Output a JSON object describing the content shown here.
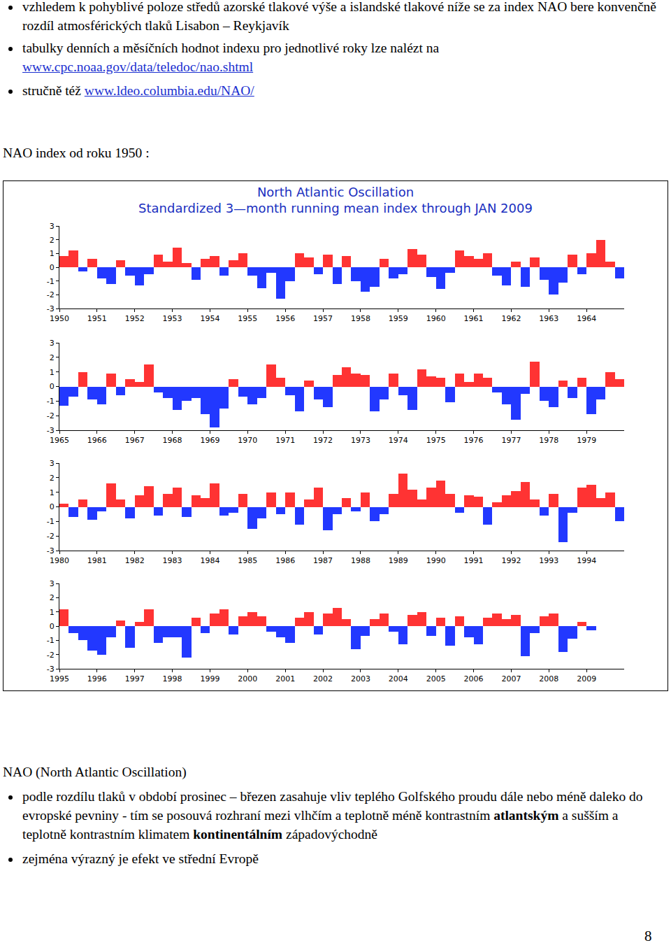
{
  "document": {
    "top_bullets": [
      [
        {
          "text": "vzhledem k pohyblivé poloze středů azorské tlakové výše a islandské tlakové níže se za index NAO bere konvenčně rozdíl atmosférických tlaků Lisabon – Reykjavík"
        }
      ],
      [
        {
          "text": "tabulky denních a měsíčních hodnot indexu pro jednotlivé roky lze nalézt na "
        },
        {
          "text": "www.cpc.noaa.gov/data/teledoc/nao.shtml",
          "link": true
        }
      ],
      [
        {
          "text": "stručně též "
        },
        {
          "text": "www.ldeo.columbia.edu/NAO/",
          "link": true
        }
      ]
    ],
    "heading": "NAO index od roku 1950 :",
    "section_title": "NAO (North Atlantic Oscillation)",
    "bottom_bullets": [
      [
        {
          "text": "podle rozdílu tlaků v období prosinec – březen zasahuje vliv teplého Golfského proudu dále nebo méně daleko do evropské pevniny - tím se posouvá rozhraní mezi vlhčím a teplotně méně kontrastním "
        },
        {
          "text": "atlantským",
          "bold": true
        },
        {
          "text": " a sušším a teplotně kontrastním klimatem "
        },
        {
          "text": "kontinentálním",
          "bold": true
        },
        {
          "text": " západovýchodně"
        }
      ],
      [
        {
          "text": "zejména výrazný je efekt ve střední Evropě"
        }
      ]
    ],
    "page_number": 8
  },
  "chart_data": [
    {
      "type": "bar",
      "title": "North Atlantic Oscillation",
      "subtitle": "Standardized 3—month running mean index through JAN 2009",
      "x": [
        1950,
        1950.25,
        1950.5,
        1950.75,
        1951,
        1951.25,
        1951.5,
        1951.75,
        1952,
        1952.25,
        1952.5,
        1952.75,
        1953,
        1953.25,
        1953.5,
        1953.75,
        1954,
        1954.25,
        1954.5,
        1954.75,
        1955,
        1955.25,
        1955.5,
        1955.75,
        1956,
        1956.25,
        1956.5,
        1956.75,
        1957,
        1957.25,
        1957.5,
        1957.75,
        1958,
        1958.25,
        1958.5,
        1958.75,
        1959,
        1959.25,
        1959.5,
        1959.75,
        1960,
        1960.25,
        1960.5,
        1960.75,
        1961,
        1961.25,
        1961.5,
        1961.75,
        1962,
        1962.25,
        1962.5,
        1962.75,
        1963,
        1963.25,
        1963.5,
        1963.75,
        1964,
        1964.25,
        1964.5,
        1964.75
      ],
      "values": [
        0.8,
        1.2,
        -0.3,
        0.6,
        -0.8,
        -1.2,
        0.5,
        -0.6,
        -1.3,
        -0.5,
        0.9,
        0.4,
        1.4,
        0.3,
        -0.9,
        0.6,
        0.8,
        -0.6,
        0.5,
        1.0,
        -0.6,
        -1.5,
        -0.4,
        -2.3,
        -1.0,
        1.0,
        0.7,
        -0.5,
        0.9,
        -1.2,
        0.8,
        -1.0,
        -1.8,
        -1.4,
        0.6,
        -0.8,
        -0.5,
        1.3,
        0.9,
        -0.7,
        -1.6,
        -0.4,
        1.2,
        0.8,
        0.6,
        1.0,
        -0.6,
        -1.3,
        0.4,
        -1.4,
        0.7,
        -0.9,
        -2.0,
        -1.1,
        0.9,
        -0.5,
        1.0,
        2.0,
        0.4,
        -0.8
      ],
      "colors": [
        "#ff3333",
        "#ff3333",
        "#2238ff",
        "#ff3333",
        "#2238ff",
        "#2238ff",
        "#ff3333",
        "#2238ff",
        "#2238ff",
        "#2238ff",
        "#ff3333",
        "#ff3333",
        "#ff3333",
        "#ff3333",
        "#2238ff",
        "#ff3333",
        "#ff3333",
        "#2238ff",
        "#ff3333",
        "#ff3333",
        "#2238ff",
        "#2238ff",
        "#2238ff",
        "#2238ff",
        "#2238ff",
        "#ff3333",
        "#ff3333",
        "#2238ff",
        "#ff3333",
        "#2238ff",
        "#ff3333",
        "#2238ff",
        "#2238ff",
        "#2238ff",
        "#ff3333",
        "#2238ff",
        "#2238ff",
        "#ff3333",
        "#ff3333",
        "#2238ff",
        "#2238ff",
        "#2238ff",
        "#ff3333",
        "#ff3333",
        "#ff3333",
        "#ff3333",
        "#2238ff",
        "#2238ff",
        "#ff3333",
        "#2238ff",
        "#ff3333",
        "#2238ff",
        "#2238ff",
        "#2238ff",
        "#ff3333",
        "#2238ff",
        "#ff3333",
        "#ff3333",
        "#ff3333",
        "#2238ff"
      ],
      "xlim": [
        1950,
        1965
      ],
      "xticks": [
        1950,
        1951,
        1952,
        1953,
        1954,
        1955,
        1956,
        1957,
        1958,
        1959,
        1960,
        1961,
        1962,
        1963,
        1964
      ],
      "ylim": [
        -3,
        3
      ],
      "yticks": [
        -3,
        -2,
        -1,
        0,
        1,
        2,
        3
      ]
    },
    {
      "type": "bar",
      "x": [
        1965,
        1965.25,
        1965.5,
        1965.75,
        1966,
        1966.25,
        1966.5,
        1966.75,
        1967,
        1967.25,
        1967.5,
        1967.75,
        1968,
        1968.25,
        1968.5,
        1968.75,
        1969,
        1969.25,
        1969.5,
        1969.75,
        1970,
        1970.25,
        1970.5,
        1970.75,
        1971,
        1971.25,
        1971.5,
        1971.75,
        1972,
        1972.25,
        1972.5,
        1972.75,
        1973,
        1973.25,
        1973.5,
        1973.75,
        1974,
        1974.25,
        1974.5,
        1974.75,
        1975,
        1975.25,
        1975.5,
        1975.75,
        1976,
        1976.25,
        1976.5,
        1976.75,
        1977,
        1977.25,
        1977.5,
        1977.75,
        1978,
        1978.25,
        1978.5,
        1978.75,
        1979,
        1979.25,
        1979.5,
        1979.75
      ],
      "values": [
        -1.3,
        -0.7,
        1.0,
        -0.9,
        -1.2,
        0.9,
        -0.6,
        0.5,
        0.3,
        1.5,
        -0.4,
        -0.8,
        -1.6,
        -1.0,
        -0.8,
        -1.9,
        -2.8,
        -1.5,
        0.5,
        -0.7,
        -1.2,
        -0.8,
        1.5,
        0.6,
        -0.6,
        -1.7,
        0.4,
        -0.9,
        -1.4,
        0.8,
        1.3,
        0.9,
        0.8,
        -1.7,
        -0.9,
        0.9,
        -0.6,
        -1.6,
        1.2,
        0.7,
        0.6,
        -1.1,
        0.9,
        0.3,
        0.9,
        0.6,
        -0.4,
        -1.2,
        -2.3,
        -0.5,
        1.7,
        -1.0,
        -1.4,
        0.4,
        -0.8,
        0.6,
        -1.9,
        -0.9,
        1.0,
        0.5
      ],
      "colors": [
        "#2238ff",
        "#2238ff",
        "#ff3333",
        "#2238ff",
        "#2238ff",
        "#ff3333",
        "#2238ff",
        "#ff3333",
        "#ff3333",
        "#ff3333",
        "#2238ff",
        "#2238ff",
        "#2238ff",
        "#2238ff",
        "#2238ff",
        "#2238ff",
        "#2238ff",
        "#2238ff",
        "#ff3333",
        "#2238ff",
        "#2238ff",
        "#2238ff",
        "#ff3333",
        "#ff3333",
        "#2238ff",
        "#2238ff",
        "#ff3333",
        "#2238ff",
        "#2238ff",
        "#ff3333",
        "#ff3333",
        "#ff3333",
        "#ff3333",
        "#2238ff",
        "#2238ff",
        "#ff3333",
        "#2238ff",
        "#2238ff",
        "#ff3333",
        "#ff3333",
        "#ff3333",
        "#2238ff",
        "#ff3333",
        "#ff3333",
        "#ff3333",
        "#ff3333",
        "#2238ff",
        "#2238ff",
        "#2238ff",
        "#2238ff",
        "#ff3333",
        "#2238ff",
        "#2238ff",
        "#ff3333",
        "#2238ff",
        "#ff3333",
        "#2238ff",
        "#2238ff",
        "#ff3333",
        "#ff3333"
      ],
      "xlim": [
        1965,
        1980
      ],
      "xticks": [
        1965,
        1966,
        1967,
        1968,
        1969,
        1970,
        1971,
        1972,
        1973,
        1974,
        1975,
        1976,
        1977,
        1978,
        1979
      ],
      "ylim": [
        -3,
        3
      ],
      "yticks": [
        -3,
        -2,
        -1,
        0,
        1,
        2,
        3
      ]
    },
    {
      "type": "bar",
      "x": [
        1980,
        1980.25,
        1980.5,
        1980.75,
        1981,
        1981.25,
        1981.5,
        1981.75,
        1982,
        1982.25,
        1982.5,
        1982.75,
        1983,
        1983.25,
        1983.5,
        1983.75,
        1984,
        1984.25,
        1984.5,
        1984.75,
        1985,
        1985.25,
        1985.5,
        1985.75,
        1986,
        1986.25,
        1986.5,
        1986.75,
        1987,
        1987.25,
        1987.5,
        1987.75,
        1988,
        1988.25,
        1988.5,
        1988.75,
        1989,
        1989.25,
        1989.5,
        1989.75,
        1990,
        1990.25,
        1990.5,
        1990.75,
        1991,
        1991.25,
        1991.5,
        1991.75,
        1992,
        1992.25,
        1992.5,
        1992.75,
        1993,
        1993.25,
        1993.5,
        1993.75,
        1994,
        1994.25,
        1994.5,
        1994.75
      ],
      "values": [
        0.2,
        -0.7,
        0.5,
        -0.9,
        -0.3,
        1.6,
        0.5,
        -0.8,
        0.8,
        1.4,
        -0.6,
        0.9,
        1.3,
        -0.7,
        0.8,
        0.6,
        1.6,
        -0.6,
        -0.4,
        0.9,
        -1.5,
        -0.8,
        1.0,
        -0.5,
        1.0,
        -1.2,
        0.5,
        1.3,
        -1.6,
        -0.5,
        0.6,
        -0.3,
        1.0,
        -1.0,
        -0.5,
        0.9,
        2.3,
        1.2,
        0.5,
        1.3,
        1.8,
        0.9,
        -0.4,
        0.8,
        0.7,
        -1.2,
        0.3,
        0.8,
        1.1,
        1.7,
        0.5,
        -0.6,
        0.9,
        -2.4,
        -0.4,
        1.3,
        1.5,
        0.6,
        1.0,
        -1.0
      ],
      "colors": [
        "#ff3333",
        "#2238ff",
        "#ff3333",
        "#2238ff",
        "#2238ff",
        "#ff3333",
        "#ff3333",
        "#2238ff",
        "#ff3333",
        "#ff3333",
        "#2238ff",
        "#ff3333",
        "#ff3333",
        "#2238ff",
        "#ff3333",
        "#ff3333",
        "#ff3333",
        "#2238ff",
        "#2238ff",
        "#ff3333",
        "#2238ff",
        "#2238ff",
        "#ff3333",
        "#2238ff",
        "#ff3333",
        "#2238ff",
        "#ff3333",
        "#ff3333",
        "#2238ff",
        "#2238ff",
        "#ff3333",
        "#2238ff",
        "#ff3333",
        "#2238ff",
        "#2238ff",
        "#ff3333",
        "#ff3333",
        "#ff3333",
        "#ff3333",
        "#ff3333",
        "#ff3333",
        "#ff3333",
        "#2238ff",
        "#ff3333",
        "#ff3333",
        "#2238ff",
        "#ff3333",
        "#ff3333",
        "#ff3333",
        "#ff3333",
        "#ff3333",
        "#2238ff",
        "#ff3333",
        "#2238ff",
        "#2238ff",
        "#ff3333",
        "#ff3333",
        "#ff3333",
        "#ff3333",
        "#2238ff"
      ],
      "xlim": [
        1980,
        1995
      ],
      "xticks": [
        1980,
        1981,
        1982,
        1983,
        1984,
        1985,
        1986,
        1987,
        1988,
        1989,
        1990,
        1991,
        1992,
        1993,
        1994
      ],
      "ylim": [
        -3,
        3
      ],
      "yticks": [
        -3,
        -2,
        -1,
        0,
        1,
        2,
        3
      ]
    },
    {
      "type": "bar",
      "x": [
        1995,
        1995.25,
        1995.5,
        1995.75,
        1996,
        1996.25,
        1996.5,
        1996.75,
        1997,
        1997.25,
        1997.5,
        1997.75,
        1998,
        1998.25,
        1998.5,
        1998.75,
        1999,
        1999.25,
        1999.5,
        1999.75,
        2000,
        2000.25,
        2000.5,
        2000.75,
        2001,
        2001.25,
        2001.5,
        2001.75,
        2002,
        2002.25,
        2002.5,
        2002.75,
        2003,
        2003.25,
        2003.5,
        2003.75,
        2004,
        2004.25,
        2004.5,
        2004.75,
        2005,
        2005.25,
        2005.5,
        2005.75,
        2006,
        2006.25,
        2006.5,
        2006.75,
        2007,
        2007.25,
        2007.5,
        2007.75,
        2008,
        2008.25,
        2008.5,
        2008.75,
        2009
      ],
      "values": [
        1.2,
        -0.5,
        -1.0,
        -1.7,
        -2.0,
        -0.8,
        0.4,
        -1.5,
        0.3,
        1.2,
        -1.2,
        -0.8,
        -0.8,
        -2.2,
        0.6,
        -0.5,
        0.9,
        1.2,
        -0.6,
        0.7,
        1.0,
        0.7,
        -0.4,
        -0.8,
        -1.2,
        0.6,
        1.0,
        -0.6,
        0.9,
        1.3,
        0.5,
        -1.6,
        -0.7,
        0.5,
        0.9,
        -0.4,
        -1.3,
        0.8,
        1.0,
        -0.7,
        0.6,
        -1.4,
        0.7,
        -0.8,
        -1.3,
        0.6,
        0.9,
        0.5,
        0.8,
        -2.1,
        -0.5,
        0.7,
        0.9,
        -1.8,
        -0.9,
        0.3,
        -0.3
      ],
      "colors": [
        "#ff3333",
        "#2238ff",
        "#2238ff",
        "#2238ff",
        "#2238ff",
        "#2238ff",
        "#ff3333",
        "#2238ff",
        "#ff3333",
        "#ff3333",
        "#2238ff",
        "#2238ff",
        "#2238ff",
        "#2238ff",
        "#ff3333",
        "#2238ff",
        "#ff3333",
        "#ff3333",
        "#2238ff",
        "#ff3333",
        "#ff3333",
        "#ff3333",
        "#2238ff",
        "#2238ff",
        "#2238ff",
        "#ff3333",
        "#ff3333",
        "#2238ff",
        "#ff3333",
        "#ff3333",
        "#ff3333",
        "#2238ff",
        "#2238ff",
        "#ff3333",
        "#ff3333",
        "#2238ff",
        "#2238ff",
        "#ff3333",
        "#ff3333",
        "#2238ff",
        "#ff3333",
        "#2238ff",
        "#ff3333",
        "#2238ff",
        "#2238ff",
        "#ff3333",
        "#ff3333",
        "#ff3333",
        "#ff3333",
        "#2238ff",
        "#2238ff",
        "#ff3333",
        "#ff3333",
        "#2238ff",
        "#2238ff",
        "#ff3333",
        "#2238ff"
      ],
      "xlim": [
        1995,
        2010
      ],
      "xticks": [
        1995,
        1996,
        1997,
        1998,
        1999,
        2000,
        2001,
        2002,
        2003,
        2004,
        2005,
        2006,
        2007,
        2008,
        2009
      ],
      "ylim": [
        -3,
        3
      ],
      "yticks": [
        -3,
        -2,
        -1,
        0,
        1,
        2,
        3
      ]
    }
  ]
}
